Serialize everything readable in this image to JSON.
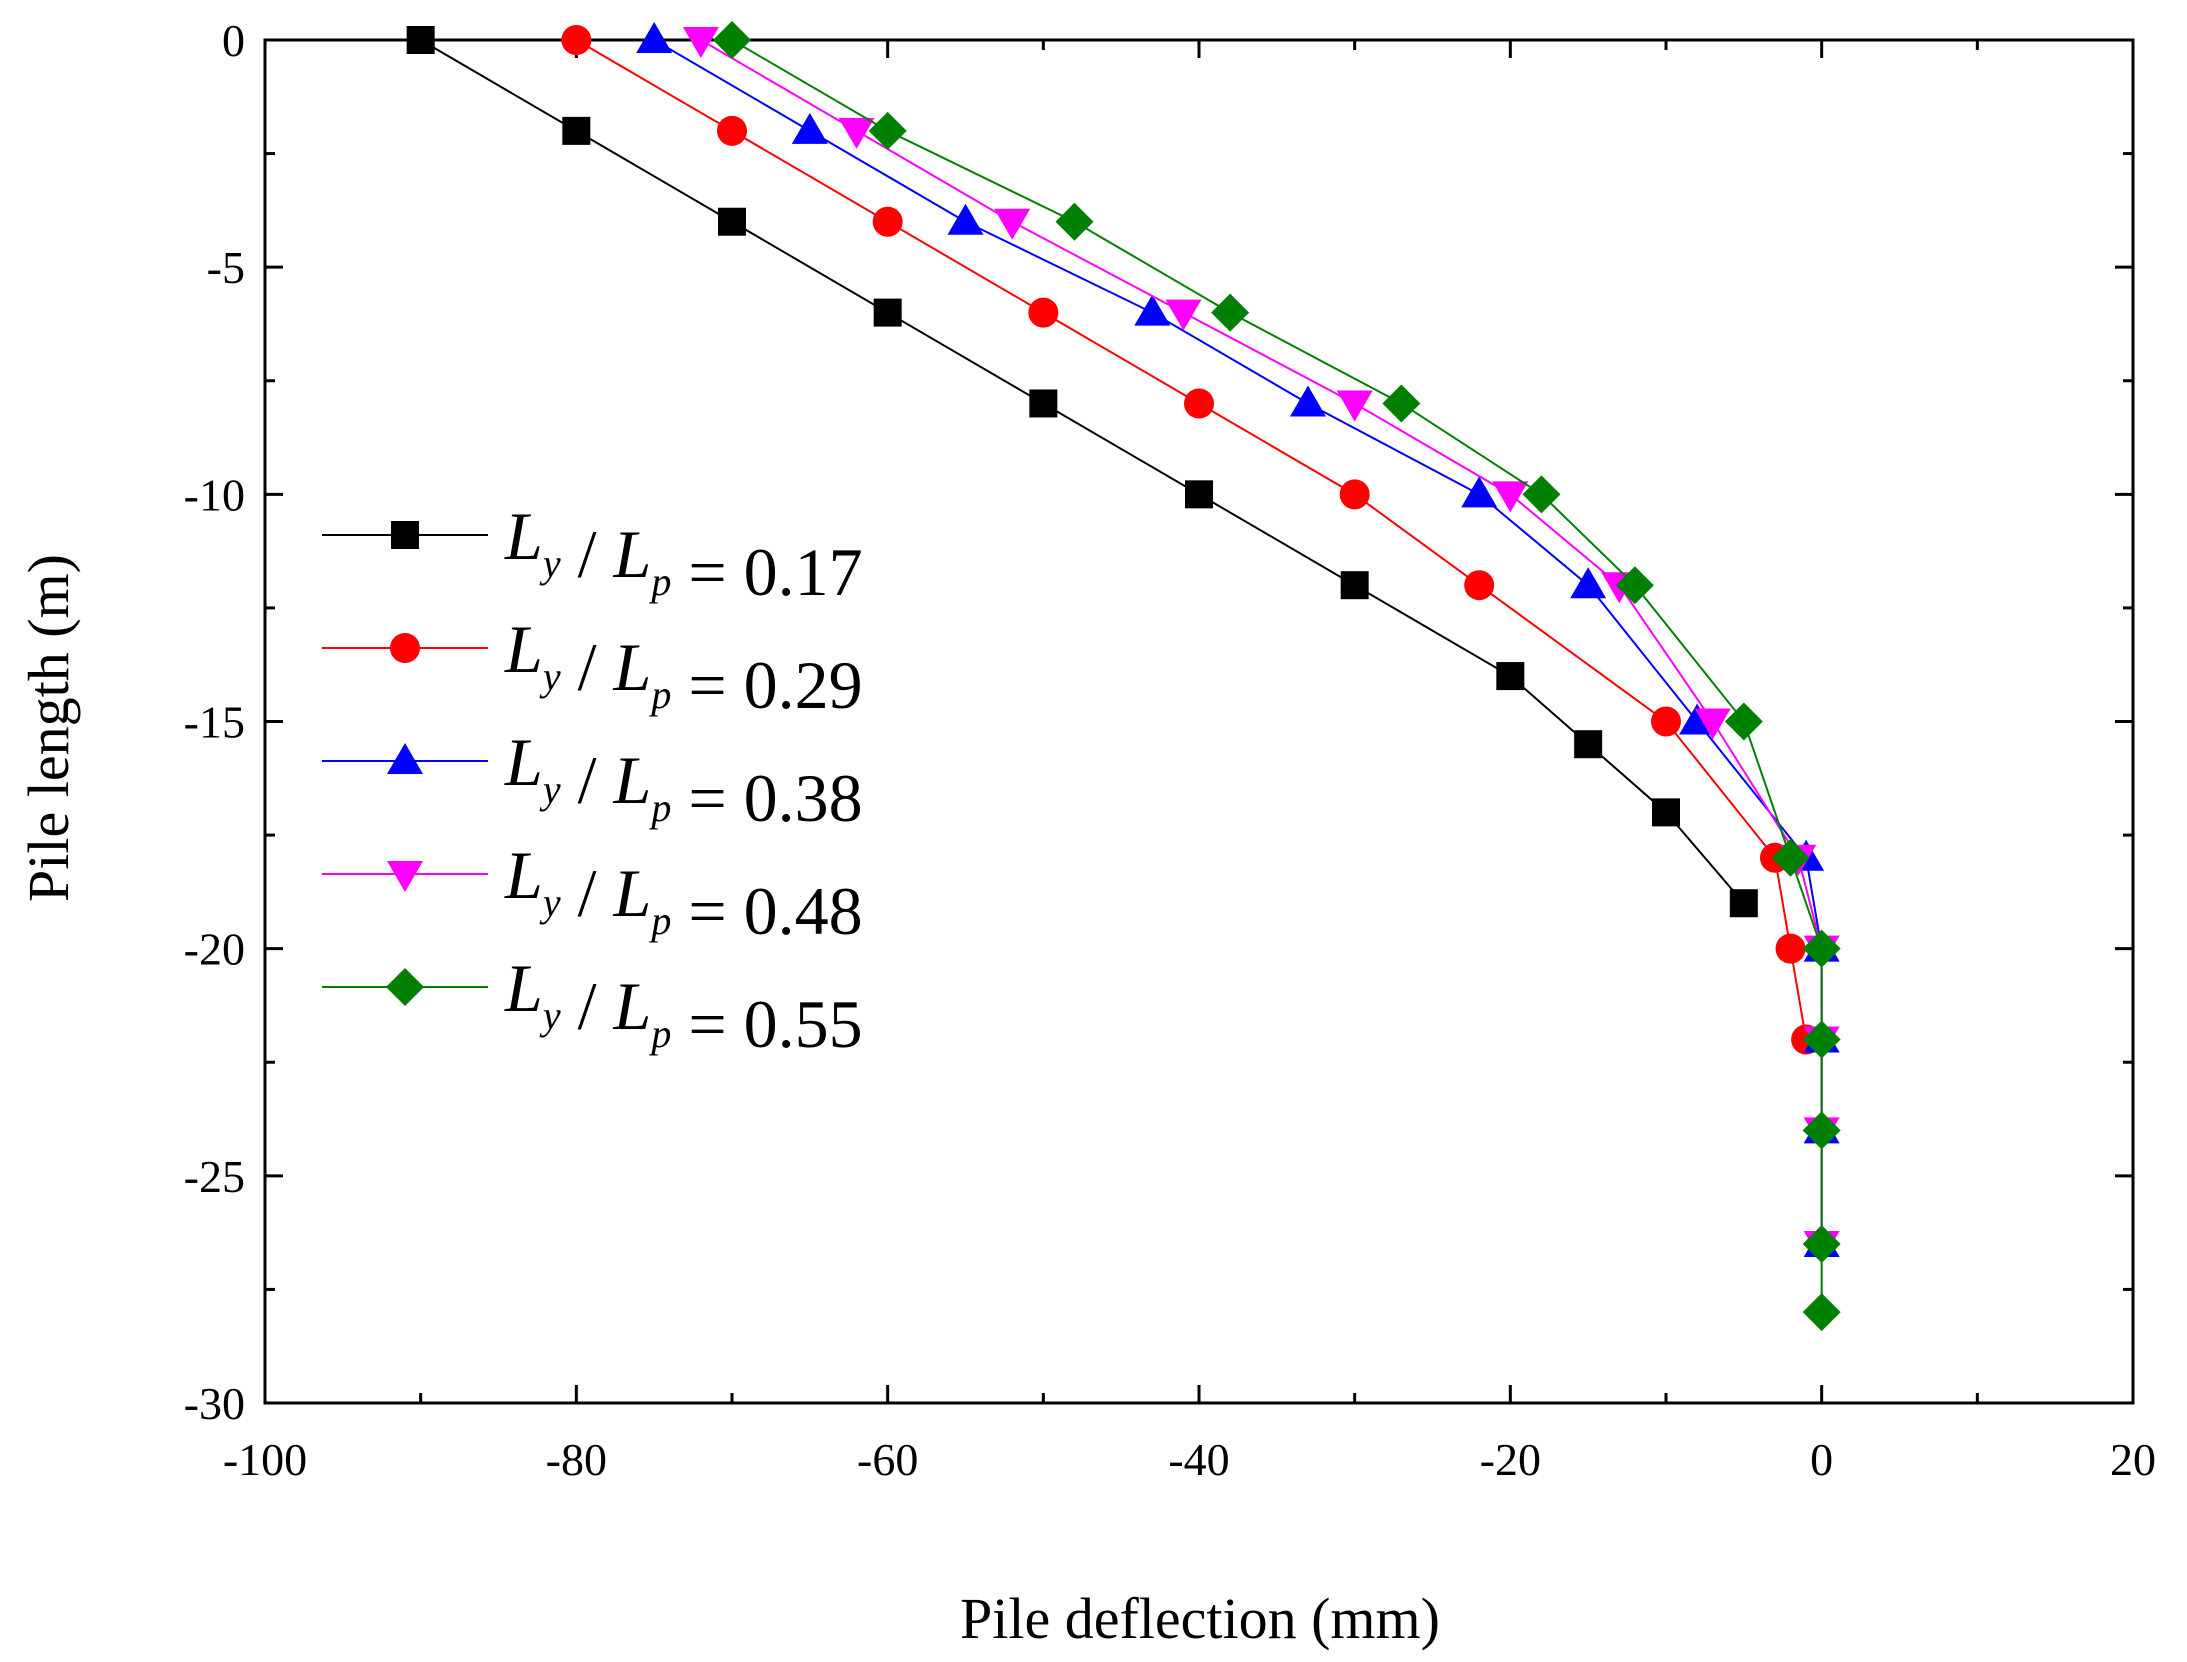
{
  "chart_data": {
    "type": "line",
    "title": "",
    "xlabel": "Pile deflection (mm)",
    "ylabel": "Pile length (m)",
    "xlim": [
      -100,
      20
    ],
    "ylim": [
      -30,
      0
    ],
    "xticks": [
      -100,
      -80,
      -60,
      -40,
      -20,
      0,
      20
    ],
    "yticks": [
      0,
      -5,
      -10,
      -15,
      -20,
      -25,
      -30
    ],
    "grid": false,
    "legend_position": "center-left",
    "series": [
      {
        "name": "L_y / L_p = 0.17",
        "legend": {
          "var1": "L",
          "sub1": "y",
          "slash": "/",
          "var2": "L",
          "sub2": "p",
          "value": "= 0.17"
        },
        "color": "#000000",
        "marker": "square",
        "x": [
          -90,
          -80,
          -70,
          -60,
          -50,
          -40,
          -30,
          -20,
          -15,
          -10,
          -5
        ],
        "y": [
          0,
          -2,
          -4,
          -6,
          -8,
          -10,
          -12,
          -14,
          -15.5,
          -17,
          -19
        ]
      },
      {
        "name": "L_y / L_p = 0.29",
        "legend": {
          "var1": "L",
          "sub1": "y",
          "slash": "/",
          "var2": "L",
          "sub2": "p",
          "value": "= 0.29"
        },
        "color": "#ff0000",
        "marker": "circle",
        "x": [
          -80,
          -70,
          -60,
          -50,
          -40,
          -30,
          -22,
          -10,
          -3,
          -2,
          -1
        ],
        "y": [
          0,
          -2,
          -4,
          -6,
          -8,
          -10,
          -12,
          -15,
          -18,
          -20,
          -22
        ]
      },
      {
        "name": "L_y / L_p = 0.38",
        "legend": {
          "var1": "L",
          "sub1": "y",
          "slash": "/",
          "var2": "L",
          "sub2": "p",
          "value": "= 0.38"
        },
        "color": "#0000ff",
        "marker": "triangle-up",
        "x": [
          -75,
          -65,
          -55,
          -43,
          -33,
          -22,
          -15,
          -8,
          -1,
          0,
          0,
          0,
          0
        ],
        "y": [
          0,
          -2,
          -4,
          -6,
          -8,
          -10,
          -12,
          -15,
          -18,
          -20,
          -22,
          -24,
          -26.5
        ]
      },
      {
        "name": "L_y / L_p = 0.48",
        "legend": {
          "var1": "L",
          "sub1": "y",
          "slash": "/",
          "var2": "L",
          "sub2": "p",
          "value": "= 0.48"
        },
        "color": "#ff00ff",
        "marker": "triangle-down",
        "x": [
          -72,
          -62,
          -52,
          -41,
          -30,
          -20,
          -13,
          -7,
          -1.5,
          0,
          0,
          0,
          0
        ],
        "y": [
          0,
          -2,
          -4,
          -6,
          -8,
          -10,
          -12,
          -15,
          -18,
          -20,
          -22,
          -24,
          -26.5
        ]
      },
      {
        "name": "L_y / L_p = 0.55",
        "legend": {
          "var1": "L",
          "sub1": "y",
          "slash": "/",
          "var2": "L",
          "sub2": "p",
          "value": "= 0.55"
        },
        "color": "#008000",
        "marker": "diamond",
        "x": [
          -70,
          -60,
          -48,
          -38,
          -27,
          -18,
          -12,
          -5,
          -2,
          0,
          0,
          0,
          0,
          0
        ],
        "y": [
          0,
          -2,
          -4,
          -6,
          -8,
          -10,
          -12,
          -15,
          -18,
          -20,
          -22,
          -24,
          -26.5,
          -28
        ]
      }
    ]
  }
}
